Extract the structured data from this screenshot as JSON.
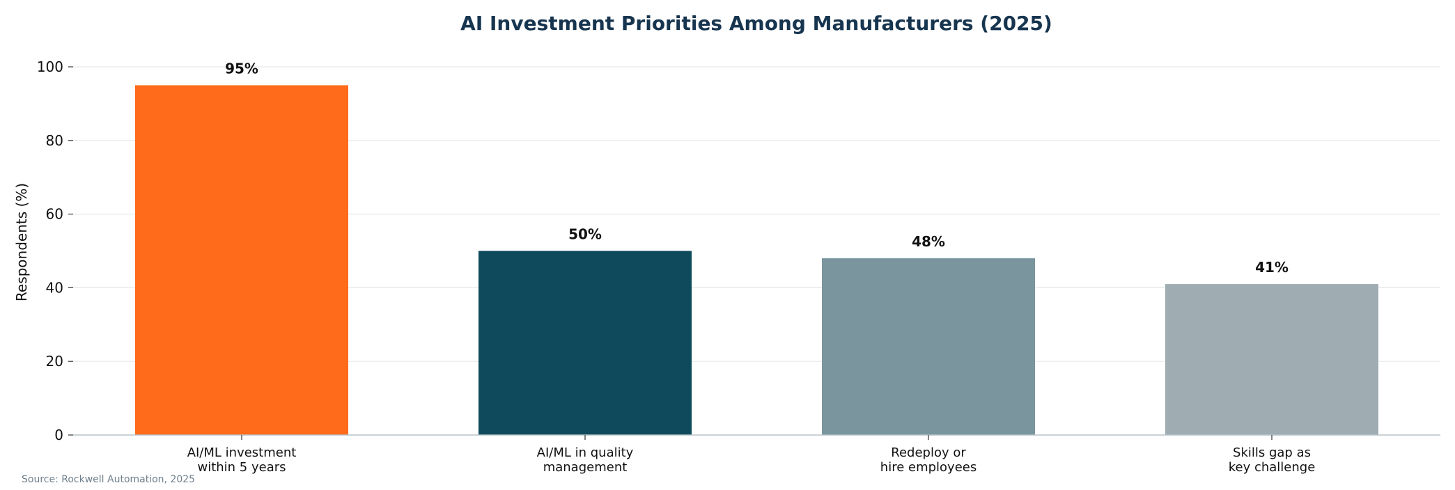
{
  "chart_data": {
    "type": "bar",
    "title": "AI Investment Priorities Among Manufacturers (2025)",
    "ylabel": "Respondents (%)",
    "xlabel": "",
    "ylim": [
      0,
      100
    ],
    "yticks": [
      0,
      20,
      40,
      60,
      80,
      100
    ],
    "grid": true,
    "categories": [
      [
        "AI/ML investment",
        "within 5 years"
      ],
      [
        "AI/ML in quality",
        "management"
      ],
      [
        "Redeploy or",
        "hire employees"
      ],
      [
        "Skills gap as",
        "key challenge"
      ]
    ],
    "values": [
      95,
      50,
      48,
      41
    ],
    "data_labels": [
      "95%",
      "50%",
      "48%",
      "41%"
    ],
    "colors": [
      "#ff6b1a",
      "#0e4a5c",
      "#7a959e",
      "#9fadb3"
    ],
    "source": "Source: Rockwell Automation, 2025"
  }
}
